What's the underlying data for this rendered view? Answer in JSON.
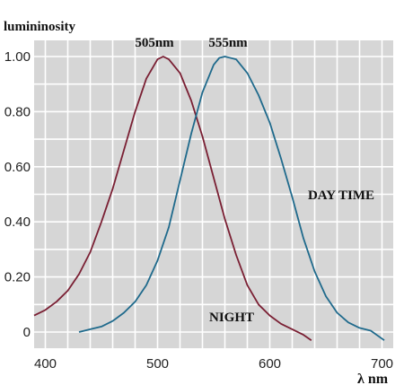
{
  "chart_data": {
    "type": "line",
    "ylabel": "lumininosity",
    "xlabel": "λ nm",
    "xlim": [
      390,
      710
    ],
    "ylim": [
      0,
      1.0
    ],
    "x_ticks": [
      "400",
      "500",
      "600",
      "700"
    ],
    "y_ticks": [
      "0",
      "0.20",
      "0.40",
      "0.60",
      "0.80",
      "1.00"
    ],
    "grid": true,
    "background_color": "#d6d6d6",
    "annotations": [
      "505nm",
      "555nm"
    ],
    "series": [
      {
        "name": "NIGHT",
        "color": "#7a1f33",
        "x": [
          390,
          400,
          410,
          420,
          430,
          440,
          450,
          460,
          470,
          480,
          490,
          500,
          505,
          510,
          520,
          530,
          540,
          550,
          560,
          570,
          580,
          590,
          600,
          610,
          620,
          630,
          637
        ],
        "y": [
          0.06,
          0.08,
          0.11,
          0.15,
          0.21,
          0.29,
          0.4,
          0.52,
          0.66,
          0.8,
          0.92,
          0.99,
          1.0,
          0.99,
          0.94,
          0.84,
          0.71,
          0.56,
          0.41,
          0.28,
          0.17,
          0.1,
          0.06,
          0.03,
          0.01,
          -0.01,
          -0.03
        ]
      },
      {
        "name": "DAY TIME",
        "color": "#1f6a8c",
        "x": [
          430,
          440,
          450,
          460,
          470,
          480,
          490,
          500,
          510,
          520,
          530,
          540,
          550,
          555,
          560,
          570,
          580,
          590,
          600,
          610,
          620,
          630,
          640,
          650,
          660,
          670,
          680,
          690,
          702
        ],
        "y": [
          0.0,
          0.01,
          0.02,
          0.04,
          0.07,
          0.11,
          0.17,
          0.26,
          0.38,
          0.55,
          0.72,
          0.87,
          0.97,
          0.995,
          1.0,
          0.99,
          0.94,
          0.86,
          0.76,
          0.63,
          0.49,
          0.34,
          0.22,
          0.13,
          0.07,
          0.035,
          0.015,
          0.005,
          -0.03
        ]
      }
    ]
  }
}
